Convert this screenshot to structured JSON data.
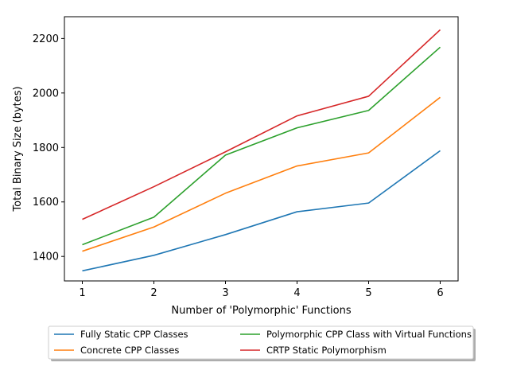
{
  "chart_data": {
    "type": "line",
    "xlabel": "Number of 'Polymorphic' Functions",
    "ylabel": "Total Binary Size (bytes)",
    "x": [
      1,
      2,
      3,
      4,
      5,
      6
    ],
    "xlim": [
      0.75,
      6.25
    ],
    "ylim": [
      1310,
      2280
    ],
    "xticks": [
      1,
      2,
      3,
      4,
      5,
      6
    ],
    "yticks": [
      1400,
      1600,
      1800,
      2000,
      2200
    ],
    "grid": false,
    "legend_position": "bottom-center-outside",
    "series": [
      {
        "name": "Fully Static CPP Classes",
        "color": "#1f77b4",
        "values": [
          1347,
          1404,
          1480,
          1564,
          1596,
          1788
        ]
      },
      {
        "name": "Concrete CPP Classes",
        "color": "#ff7f0e",
        "values": [
          1419,
          1508,
          1632,
          1732,
          1780,
          1984
        ]
      },
      {
        "name": "Polymorphic CPP Class with Virtual Functions",
        "color": "#2ca02c",
        "values": [
          1443,
          1544,
          1772,
          1872,
          1936,
          2168
        ]
      },
      {
        "name": "CRTP Static Polymorphism",
        "color": "#d62728",
        "values": [
          1536,
          1656,
          1784,
          1916,
          1988,
          2232
        ]
      }
    ]
  }
}
